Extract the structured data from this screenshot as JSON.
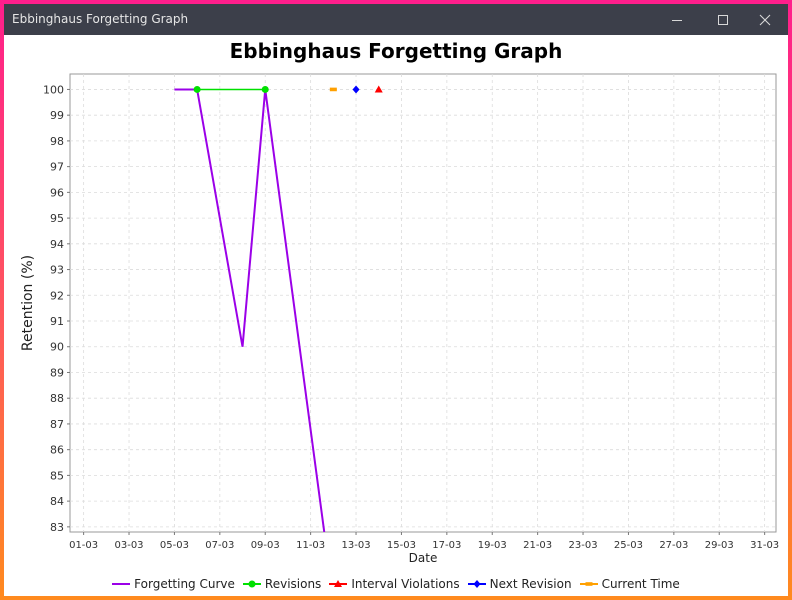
{
  "window": {
    "title": "Ebbinghaus Forgetting Graph",
    "controls": [
      "minimize-icon",
      "maximize-icon",
      "close-icon"
    ]
  },
  "colors": {
    "forgetting": "#9b00e8",
    "revisions": "#00e000",
    "violations": "#ff0000",
    "next": "#0000ff",
    "current": "#ffa000"
  },
  "chart_data": {
    "type": "line",
    "title": "Ebbinghaus Forgetting Graph",
    "xlabel": "Date",
    "ylabel": "Retention (%)",
    "x_ticks": [
      "01-03",
      "03-03",
      "05-03",
      "07-03",
      "09-03",
      "11-03",
      "13-03",
      "15-03",
      "17-03",
      "19-03",
      "21-03",
      "23-03",
      "25-03",
      "27-03",
      "29-03",
      "31-03"
    ],
    "y_ticks": [
      83,
      84,
      85,
      86,
      87,
      88,
      89,
      90,
      91,
      92,
      93,
      94,
      95,
      96,
      97,
      98,
      99,
      100
    ],
    "xlim": [
      0.4,
      31.5
    ],
    "ylim": [
      82.8,
      100.6
    ],
    "grid": true,
    "legend_position": "bottom",
    "series": [
      {
        "name": "Forgetting Curve",
        "kind": "line",
        "points": [
          [
            5,
            100
          ],
          [
            6,
            100
          ],
          [
            8,
            90
          ],
          [
            9,
            100
          ],
          [
            11.6,
            82.8
          ]
        ]
      },
      {
        "name": "Revisions",
        "kind": "line-markers",
        "marker": "circle",
        "points": [
          [
            6,
            100
          ],
          [
            9,
            100
          ]
        ]
      },
      {
        "name": "Interval Violations",
        "kind": "marker",
        "marker": "triangle",
        "points": [
          [
            14,
            100
          ]
        ]
      },
      {
        "name": "Next Revision",
        "kind": "marker",
        "marker": "diamond",
        "points": [
          [
            13,
            100
          ]
        ]
      },
      {
        "name": "Current Time",
        "kind": "marker",
        "marker": "rect",
        "points": [
          [
            12,
            100
          ]
        ]
      }
    ]
  }
}
